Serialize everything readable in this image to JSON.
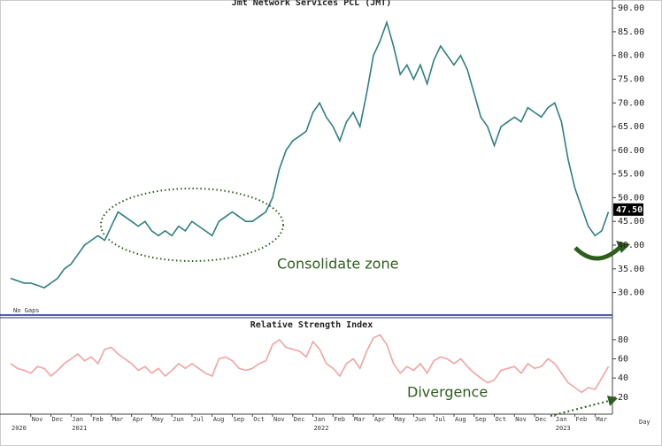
{
  "chart_data": [
    {
      "type": "line",
      "title": "Jmt Network Services PCL (JMT)",
      "color": "#2f7f7f",
      "values": [
        33,
        32.5,
        32,
        32,
        31.5,
        31,
        32,
        33,
        35,
        36,
        38,
        40,
        41,
        42,
        41,
        44,
        47,
        46,
        45,
        44,
        45,
        43,
        42,
        43,
        42,
        44,
        43,
        45,
        44,
        43,
        42,
        45,
        46,
        47,
        46,
        45,
        45,
        46,
        47,
        50,
        56,
        60,
        62,
        63,
        64,
        68,
        70,
        67,
        65,
        62,
        66,
        68,
        65,
        72,
        80,
        83,
        87,
        82,
        76,
        78,
        75,
        78,
        74,
        79,
        82,
        80,
        78,
        80,
        77,
        72,
        67,
        65,
        61,
        65,
        66,
        67,
        66,
        69,
        68,
        67,
        69,
        70,
        66,
        58,
        52,
        48,
        44,
        42,
        43,
        47
      ],
      "ylim": [
        26,
        91.7
      ],
      "yticks": [
        {
          "value": 30,
          "label": "30.00"
        },
        {
          "value": 35,
          "label": "35.00"
        },
        {
          "value": 40,
          "label": "40.00"
        },
        {
          "value": 45,
          "label": "45.00"
        },
        {
          "value": 50,
          "label": "50.00"
        },
        {
          "value": 55,
          "label": "55.00"
        },
        {
          "value": 60,
          "label": "60.00"
        },
        {
          "value": 65,
          "label": "65.00"
        },
        {
          "value": 70,
          "label": "70.00"
        },
        {
          "value": 75,
          "label": "75.00"
        },
        {
          "value": 80,
          "label": "80.00"
        },
        {
          "value": 85,
          "label": "85.00"
        },
        {
          "value": 90,
          "label": "90.00"
        }
      ],
      "price_marker": {
        "value": 47.5,
        "label": "47.50"
      },
      "annotations": [
        "No Gaps",
        "Consolidate zone"
      ]
    },
    {
      "type": "line",
      "title": "Relative Strength Index",
      "color": "#f4a3a3",
      "categories": [
        null,
        null,
        null,
        "Nov",
        null,
        null,
        "Dec",
        null,
        null,
        "Jan",
        null,
        null,
        "Feb",
        null,
        null,
        "Mar",
        null,
        null,
        "Apr",
        null,
        null,
        "May",
        null,
        null,
        "Jun",
        null,
        null,
        "Jul",
        null,
        null,
        "Aug",
        null,
        null,
        "Sep",
        null,
        null,
        "Oct",
        null,
        null,
        "Nov",
        null,
        null,
        "Dec",
        null,
        null,
        "Jan",
        null,
        null,
        "Feb",
        null,
        null,
        "Mar",
        null,
        null,
        "Apr",
        null,
        null,
        "May",
        null,
        null,
        "Jun",
        null,
        null,
        "Jul",
        null,
        null,
        "Aug",
        null,
        null,
        "Sep",
        null,
        null,
        "Oct",
        null,
        null,
        "Nov",
        null,
        null,
        "Dec",
        null,
        null,
        "Jan",
        null,
        null,
        "Feb",
        null,
        null,
        "Mar",
        null,
        null
      ],
      "years": [
        "2020",
        null,
        null,
        null,
        null,
        null,
        null,
        null,
        null,
        "2021",
        null,
        null,
        null,
        null,
        null,
        null,
        null,
        null,
        null,
        null,
        null,
        null,
        null,
        null,
        null,
        null,
        null,
        null,
        null,
        null,
        null,
        null,
        null,
        null,
        null,
        null,
        null,
        null,
        null,
        null,
        null,
        null,
        null,
        null,
        null,
        "2022",
        null,
        null,
        null,
        null,
        null,
        null,
        null,
        null,
        null,
        null,
        null,
        null,
        null,
        null,
        null,
        null,
        null,
        null,
        null,
        null,
        null,
        null,
        null,
        null,
        null,
        null,
        null,
        null,
        null,
        null,
        null,
        null,
        null,
        null,
        null,
        "2023",
        null,
        null,
        null,
        null,
        null,
        null,
        null,
        null
      ],
      "values": [
        55,
        50,
        48,
        45,
        52,
        50,
        42,
        48,
        55,
        60,
        65,
        58,
        62,
        55,
        70,
        72,
        65,
        60,
        55,
        48,
        52,
        45,
        50,
        42,
        48,
        55,
        50,
        55,
        50,
        45,
        42,
        60,
        62,
        58,
        50,
        48,
        50,
        55,
        58,
        75,
        80,
        72,
        70,
        68,
        62,
        78,
        70,
        55,
        50,
        42,
        55,
        60,
        50,
        68,
        82,
        85,
        75,
        55,
        45,
        52,
        48,
        55,
        45,
        58,
        62,
        60,
        55,
        60,
        52,
        45,
        40,
        35,
        38,
        48,
        50,
        52,
        45,
        55,
        50,
        52,
        60,
        55,
        45,
        35,
        30,
        25,
        30,
        28,
        40,
        52
      ],
      "ylim": [
        5,
        91
      ],
      "yticks": [
        20,
        40,
        60,
        80
      ],
      "annotations": [
        "Divergence"
      ],
      "x_label": "Day"
    }
  ]
}
